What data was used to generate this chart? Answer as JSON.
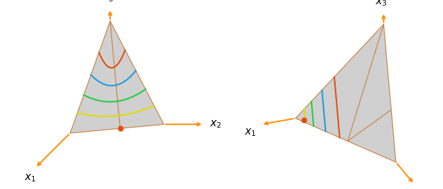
{
  "background": "#ffffff",
  "simplex_fill": "#d0d0d0",
  "simplex_fill_alpha": 1.0,
  "arrow_color": "#ff8c00",
  "edge_color": "#c8874a",
  "edge_lw": 0.9,
  "dot_color": "#e05010",
  "dot_size": 25,
  "curve_colors_left": [
    "#e05010",
    "#2299dd",
    "#22cc44",
    "#dddd00"
  ],
  "curve_colors_right": [
    "#e05010",
    "#2299dd",
    "#22cc44",
    "#dddd00"
  ],
  "label_fontsize": 11
}
